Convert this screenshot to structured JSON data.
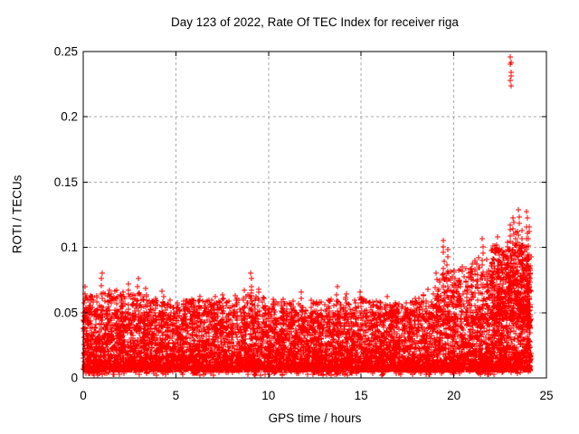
{
  "chart_data": {
    "type": "scatter",
    "title": "Day 123 of 2022, Rate Of TEC Index for receiver riga",
    "xlabel": "GPS time / hours",
    "ylabel": "ROTI / TECUs",
    "series_name": "ROTI",
    "marker": "plus",
    "point_color": "#ff0000",
    "axis_color": "#000000",
    "text_color": "#000000",
    "background_color": "#ffffff",
    "xlim": [
      0,
      25
    ],
    "ylim": [
      0,
      0.25
    ],
    "xticks": [
      {
        "value": 0,
        "label": "0"
      },
      {
        "value": 5,
        "label": "5"
      },
      {
        "value": 10,
        "label": "10"
      },
      {
        "value": 15,
        "label": "15"
      },
      {
        "value": 20,
        "label": "20"
      },
      {
        "value": 25,
        "label": "25"
      }
    ],
    "yticks": [
      {
        "value": 0,
        "label": "0"
      },
      {
        "value": 0.05,
        "label": "0.05"
      },
      {
        "value": 0.1,
        "label": "0.1"
      },
      {
        "value": 0.15,
        "label": "0.15"
      },
      {
        "value": 0.2,
        "label": "0.2"
      },
      {
        "value": 0.25,
        "label": "0.25"
      }
    ],
    "grid": {
      "show": true,
      "color": "#a9a9a9",
      "dash": "3,3"
    },
    "tick_length": 5,
    "x_data_range": [
      0,
      24.15
    ],
    "band": {
      "seed": 20220503,
      "n_base": 7000,
      "n_tail": 900,
      "n_low": 350,
      "y_floor": 0.006,
      "band_top": 0.047,
      "base_power": 2.2,
      "tail_power": 1.5,
      "low_min": 0.002,
      "low_span": 0.007,
      "envelope_hourly": [
        0.062,
        0.065,
        0.068,
        0.066,
        0.06,
        0.058,
        0.06,
        0.06,
        0.062,
        0.068,
        0.06,
        0.058,
        0.056,
        0.06,
        0.062,
        0.062,
        0.058,
        0.057,
        0.06,
        0.075,
        0.082,
        0.09,
        0.1,
        0.11,
        0.09
      ],
      "extra_regions": [
        {
          "x0": 19.0,
          "x1": 22.0,
          "n": 150,
          "ymin": 0.045,
          "yspan": 0.04,
          "pow": 1.8
        },
        {
          "x0": 22.0,
          "x1": 24.15,
          "n": 420,
          "ymin": 0.045,
          "yspan": 0.058,
          "pow": 1.6
        }
      ]
    },
    "spike_columns": [
      [
        0.1,
        0.07
      ],
      [
        0.35,
        0.063
      ],
      [
        0.7,
        0.058
      ],
      [
        1.0,
        0.081
      ],
      [
        1.35,
        0.068
      ],
      [
        1.8,
        0.061
      ],
      [
        2.1,
        0.066
      ],
      [
        2.45,
        0.071
      ],
      [
        2.7,
        0.064
      ],
      [
        2.95,
        0.076
      ],
      [
        3.3,
        0.068
      ],
      [
        3.6,
        0.059
      ],
      [
        3.9,
        0.062
      ],
      [
        4.3,
        0.066
      ],
      [
        4.7,
        0.059
      ],
      [
        5.1,
        0.056
      ],
      [
        5.5,
        0.058
      ],
      [
        5.9,
        0.061
      ],
      [
        6.3,
        0.063
      ],
      [
        6.7,
        0.058
      ],
      [
        7.1,
        0.061
      ],
      [
        7.5,
        0.064
      ],
      [
        7.9,
        0.059
      ],
      [
        8.3,
        0.062
      ],
      [
        8.7,
        0.066
      ],
      [
        9.1,
        0.08
      ],
      [
        9.45,
        0.069
      ],
      [
        9.8,
        0.061
      ],
      [
        10.3,
        0.061
      ],
      [
        10.8,
        0.059
      ],
      [
        11.3,
        0.058
      ],
      [
        11.8,
        0.065
      ],
      [
        12.3,
        0.06
      ],
      [
        12.8,
        0.057
      ],
      [
        13.3,
        0.059
      ],
      [
        13.7,
        0.07
      ],
      [
        14.2,
        0.065
      ],
      [
        14.65,
        0.059
      ],
      [
        15.0,
        0.067
      ],
      [
        15.5,
        0.059
      ],
      [
        16.0,
        0.057
      ],
      [
        16.45,
        0.061
      ],
      [
        16.9,
        0.057
      ],
      [
        17.4,
        0.059
      ],
      [
        17.9,
        0.061
      ],
      [
        18.35,
        0.063
      ],
      [
        18.8,
        0.059
      ],
      [
        19.2,
        0.062
      ],
      [
        19.45,
        0.105
      ],
      [
        19.65,
        0.097
      ],
      [
        20.0,
        0.081
      ],
      [
        20.35,
        0.074
      ],
      [
        20.7,
        0.069
      ],
      [
        20.95,
        0.087
      ],
      [
        21.3,
        0.093
      ],
      [
        21.55,
        0.106
      ],
      [
        21.85,
        0.081
      ],
      [
        22.1,
        0.091
      ],
      [
        22.35,
        0.107
      ],
      [
        22.6,
        0.096
      ],
      [
        22.85,
        0.103
      ],
      [
        23.05,
        0.118
      ],
      [
        23.2,
        0.124
      ],
      [
        23.35,
        0.111
      ],
      [
        23.5,
        0.128
      ],
      [
        23.65,
        0.113
      ],
      [
        23.8,
        0.101
      ],
      [
        23.95,
        0.126
      ],
      [
        24.05,
        0.116
      ],
      [
        24.12,
        0.092
      ]
    ],
    "outliers": [
      [
        23.06,
        0.246
      ],
      [
        23.1,
        0.242
      ],
      [
        23.06,
        0.24
      ],
      [
        23.08,
        0.234
      ],
      [
        23.12,
        0.231
      ],
      [
        23.07,
        0.228
      ],
      [
        23.1,
        0.224
      ]
    ]
  }
}
